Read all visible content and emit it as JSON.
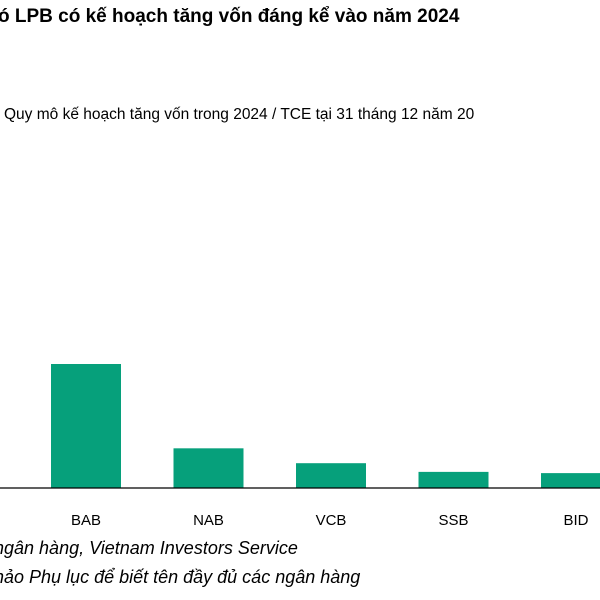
{
  "header": {
    "title": "ó LPB có kế hoạch tăng vốn đáng kể vào năm 2024",
    "subtitle": "Quy mô kế hoạch tăng vốn trong 2024 / TCE tại 31 tháng 12 năm 20"
  },
  "chart_data": {
    "type": "bar",
    "title": "",
    "xlabel": "",
    "ylabel": "",
    "categories": [
      "BAB",
      "NAB",
      "VCB",
      "SSB",
      "BID"
    ],
    "values": [
      100,
      32,
      20,
      13,
      12
    ],
    "ylim": [
      0,
      100
    ],
    "grid": false,
    "bar_color": "#06a07b"
  },
  "footer": {
    "source": "ngân hàng, Vietnam Investors Service",
    "note": "hảo Phụ lục để biết tên đầy đủ các ngân hàng"
  }
}
